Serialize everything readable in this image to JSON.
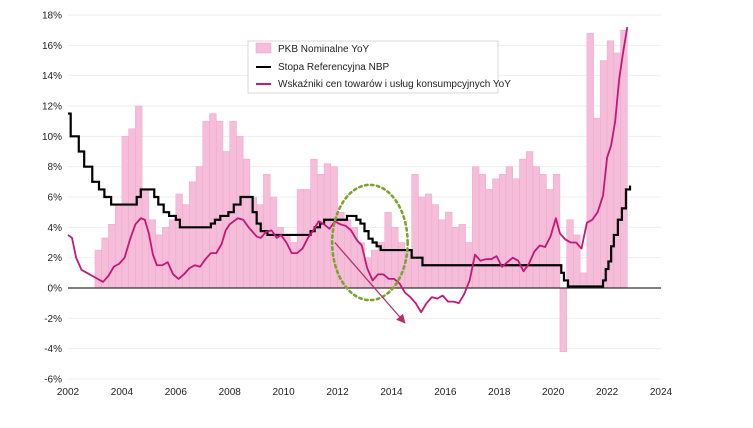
{
  "chart_data": {
    "type": "line",
    "title": "",
    "xlabel": "",
    "ylabel": "",
    "xlim": [
      2002,
      2024
    ],
    "ylim": [
      -6,
      18
    ],
    "x_ticks": [
      "2002",
      "2004",
      "2006",
      "2008",
      "2010",
      "2012",
      "2014",
      "2016",
      "2018",
      "2020",
      "2022",
      "2024"
    ],
    "y_ticks": [
      "18%",
      "16%",
      "14%",
      "12%",
      "10%",
      "8%",
      "6%",
      "4%",
      "2%",
      "0%",
      "-2%",
      "-4%",
      "-6%"
    ],
    "legend": {
      "position": "top-center",
      "entries": [
        "PKB Nominalne YoY",
        "Stopa Referencyjna NBP",
        "Wskaźniki cen towarów i usług konsumpcyjnych YoY"
      ]
    },
    "colors": {
      "gdp": "#f5bdd9",
      "gdp_edge": "#eea8cc",
      "rate": "#000000",
      "cpi": "#c2187a",
      "ellipse": "#7aa52e",
      "arrow": "#b3306f",
      "zero": "#333333",
      "grid": "#eeeeee"
    },
    "series": [
      {
        "name": "PKB Nominalne YoY",
        "kind": "step-area",
        "x": [
          2003.0,
          2003.25,
          2003.5,
          2003.75,
          2004.0,
          2004.25,
          2004.5,
          2004.75,
          2005.0,
          2005.25,
          2005.5,
          2005.75,
          2006.0,
          2006.25,
          2006.5,
          2006.75,
          2007.0,
          2007.25,
          2007.5,
          2007.75,
          2008.0,
          2008.25,
          2008.5,
          2008.75,
          2009.0,
          2009.25,
          2009.5,
          2009.75,
          2010.0,
          2010.25,
          2010.5,
          2010.75,
          2011.0,
          2011.25,
          2011.5,
          2011.75,
          2012.0,
          2012.25,
          2012.5,
          2012.75,
          2013.0,
          2013.25,
          2013.5,
          2013.75,
          2014.0,
          2014.25,
          2014.5,
          2014.75,
          2015.0,
          2015.25,
          2015.5,
          2015.75,
          2016.0,
          2016.25,
          2016.5,
          2016.75,
          2017.0,
          2017.25,
          2017.5,
          2017.75,
          2018.0,
          2018.25,
          2018.5,
          2018.75,
          2019.0,
          2019.25,
          2019.5,
          2019.75,
          2020.0,
          2020.25,
          2020.5,
          2020.75,
          2021.0,
          2021.25,
          2021.5,
          2021.75,
          2022.0,
          2022.25,
          2022.5
        ],
        "values": [
          2.5,
          3.3,
          4.2,
          5.5,
          10.0,
          10.5,
          12.0,
          6.5,
          4.5,
          3.5,
          4.0,
          4.5,
          6.2,
          5.5,
          7.0,
          8.0,
          11.0,
          11.5,
          11.0,
          9.0,
          11.0,
          10.0,
          8.5,
          6.0,
          5.5,
          7.5,
          6.0,
          4.0,
          3.5,
          3.0,
          6.5,
          6.5,
          8.5,
          7.5,
          8.2,
          8.0,
          5.0,
          4.5,
          4.0,
          3.0,
          2.0,
          2.5,
          3.0,
          5.0,
          4.0,
          3.0,
          2.5,
          7.5,
          6.0,
          6.2,
          5.5,
          4.5,
          5.0,
          4.0,
          4.2,
          3.0,
          8.0,
          7.5,
          6.5,
          7.2,
          7.5,
          8.0,
          7.2,
          8.5,
          9.0,
          8.0,
          7.5,
          6.5,
          7.5,
          -4.2,
          4.5,
          3.5,
          1.0,
          16.8,
          11.2,
          15.0,
          16.3,
          15.5,
          17.0
        ]
      },
      {
        "name": "Stopa Referencyjna NBP",
        "kind": "step-line",
        "x": [
          2002.0,
          2002.1,
          2002.4,
          2002.6,
          2002.9,
          2003.15,
          2003.35,
          2003.6,
          2004.55,
          2004.7,
          2004.85,
          2005.2,
          2005.35,
          2005.55,
          2005.75,
          2006.0,
          2006.15,
          2007.3,
          2007.45,
          2007.65,
          2007.95,
          2008.15,
          2008.4,
          2008.85,
          2009.0,
          2009.15,
          2009.4,
          2009.6,
          2011.0,
          2011.15,
          2011.35,
          2011.5,
          2012.35,
          2012.7,
          2012.85,
          2013.0,
          2013.15,
          2013.3,
          2013.45,
          2013.6,
          2014.75,
          2015.15,
          2020.3,
          2020.4,
          2020.55,
          2021.85,
          2021.95,
          2022.05,
          2022.15,
          2022.25,
          2022.4,
          2022.55,
          2022.7,
          2022.85
        ],
        "values": [
          11.5,
          10.0,
          9.0,
          8.0,
          7.0,
          6.5,
          6.0,
          5.5,
          6.0,
          6.5,
          6.5,
          6.0,
          5.5,
          5.0,
          4.75,
          4.5,
          4.0,
          4.25,
          4.5,
          4.75,
          5.0,
          5.5,
          6.0,
          5.0,
          4.25,
          3.75,
          3.5,
          3.5,
          3.75,
          4.0,
          4.25,
          4.5,
          4.75,
          4.5,
          4.25,
          3.75,
          3.25,
          3.0,
          2.75,
          2.5,
          2.0,
          1.5,
          1.0,
          0.5,
          0.1,
          0.5,
          1.25,
          1.75,
          2.75,
          3.5,
          4.5,
          5.25,
          6.5,
          6.75
        ]
      },
      {
        "name": "Wskaźniki cen towarów i usług konsumpcyjnych YoY",
        "kind": "line",
        "x": [
          2002.0,
          2002.15,
          2002.3,
          2002.5,
          2002.7,
          2002.9,
          2003.1,
          2003.3,
          2003.5,
          2003.7,
          2003.9,
          2004.1,
          2004.3,
          2004.5,
          2004.7,
          2004.85,
          2005.0,
          2005.15,
          2005.3,
          2005.5,
          2005.7,
          2005.9,
          2006.1,
          2006.3,
          2006.5,
          2006.7,
          2006.9,
          2007.1,
          2007.3,
          2007.5,
          2007.7,
          2007.85,
          2008.0,
          2008.15,
          2008.3,
          2008.5,
          2008.7,
          2008.85,
          2009.0,
          2009.15,
          2009.35,
          2009.55,
          2009.75,
          2009.9,
          2010.1,
          2010.3,
          2010.5,
          2010.7,
          2010.9,
          2011.1,
          2011.3,
          2011.5,
          2011.7,
          2011.9,
          2012.1,
          2012.3,
          2012.5,
          2012.7,
          2012.9,
          2013.1,
          2013.3,
          2013.5,
          2013.7,
          2013.9,
          2014.1,
          2014.3,
          2014.5,
          2014.7,
          2014.9,
          2015.1,
          2015.3,
          2015.5,
          2015.7,
          2015.9,
          2016.1,
          2016.3,
          2016.5,
          2016.7,
          2016.9,
          2017.1,
          2017.3,
          2017.5,
          2017.7,
          2017.9,
          2018.1,
          2018.3,
          2018.5,
          2018.7,
          2018.9,
          2019.1,
          2019.3,
          2019.5,
          2019.7,
          2019.9,
          2020.1,
          2020.25,
          2020.45,
          2020.65,
          2020.85,
          2021.05,
          2021.25,
          2021.45,
          2021.65,
          2021.85,
          2022.0,
          2022.15,
          2022.3,
          2022.45,
          2022.6,
          2022.75
        ],
        "values": [
          3.5,
          3.3,
          2.0,
          1.2,
          1.0,
          0.8,
          0.6,
          0.4,
          0.8,
          1.4,
          1.6,
          2.0,
          3.2,
          4.2,
          4.6,
          4.5,
          3.6,
          2.2,
          1.5,
          1.5,
          1.7,
          0.9,
          0.6,
          0.9,
          1.3,
          1.5,
          1.4,
          1.9,
          2.3,
          2.3,
          2.9,
          3.8,
          4.2,
          4.4,
          4.6,
          4.5,
          4.0,
          3.7,
          3.4,
          3.3,
          3.7,
          3.8,
          3.3,
          3.5,
          3.0,
          2.3,
          2.3,
          2.6,
          3.3,
          3.8,
          4.4,
          4.2,
          3.9,
          4.4,
          4.2,
          4.1,
          3.8,
          3.2,
          2.8,
          1.3,
          0.5,
          0.9,
          0.9,
          0.6,
          0.6,
          0.3,
          -0.3,
          -0.6,
          -1.0,
          -1.6,
          -1.0,
          -0.6,
          -0.7,
          -0.5,
          -0.9,
          -0.9,
          -1.0,
          -0.4,
          0.5,
          2.2,
          1.8,
          1.9,
          1.9,
          2.1,
          1.4,
          1.7,
          2.0,
          1.8,
          1.1,
          1.6,
          2.4,
          2.8,
          2.7,
          3.4,
          4.6,
          3.6,
          3.2,
          3.0,
          3.0,
          2.6,
          4.3,
          4.5,
          5.0,
          6.1,
          8.6,
          9.4,
          11.0,
          13.8,
          15.6,
          17.2
        ]
      }
    ],
    "annotations": [
      {
        "type": "dashed-ellipse",
        "center": [
          2013.2,
          3.0
        ],
        "radii_data": [
          1.4,
          3.8
        ]
      },
      {
        "type": "arrow",
        "from": [
          2011.9,
          3.0
        ],
        "to": [
          2014.5,
          -2.3
        ]
      }
    ]
  }
}
